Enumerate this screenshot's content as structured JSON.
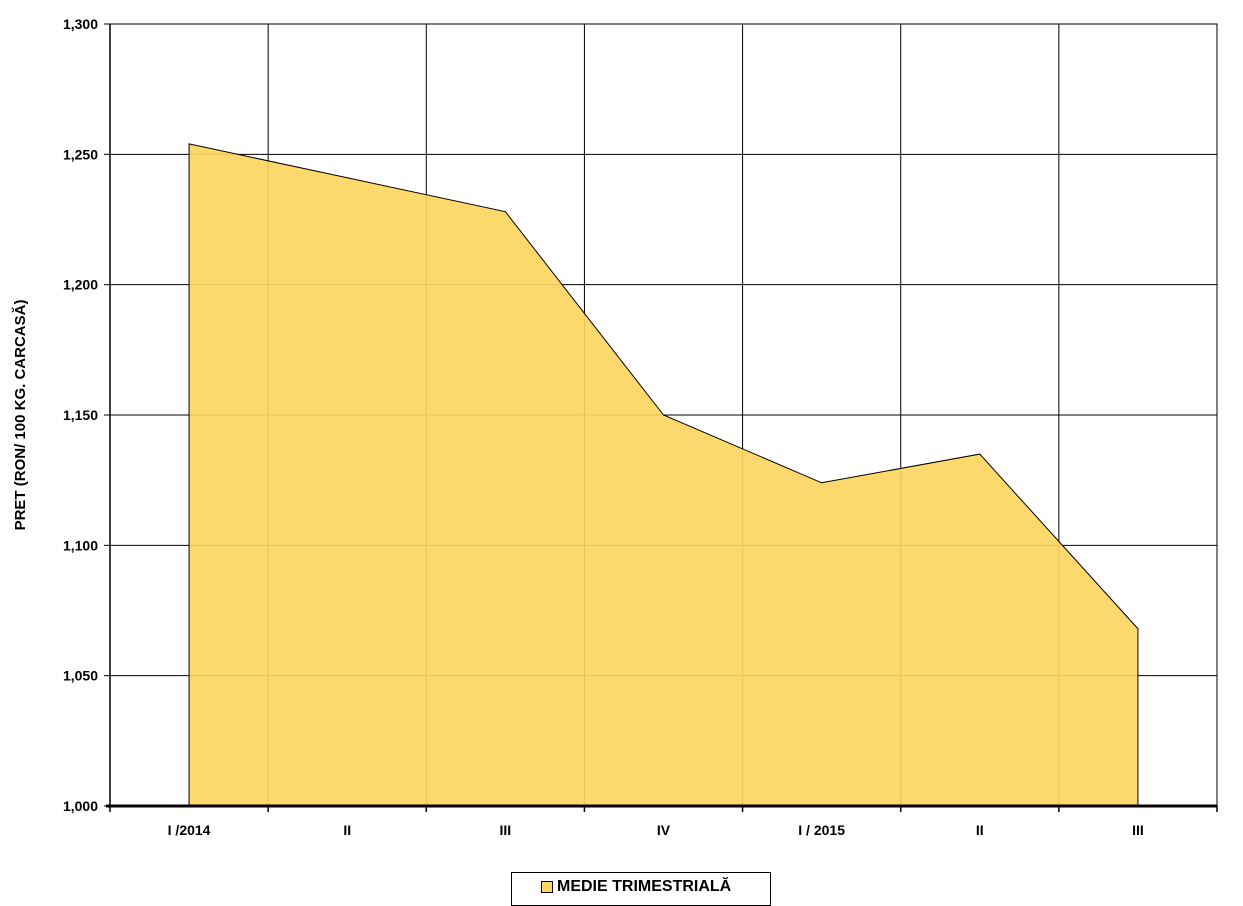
{
  "chart_data": {
    "type": "area",
    "categories": [
      "I /2014",
      "II",
      "III",
      "IV",
      "I / 2015",
      "II",
      "III"
    ],
    "series": [
      {
        "name": "MEDIE TRIMESTRIALĂ",
        "values": [
          1254,
          1241,
          1228,
          1150,
          1124,
          1135,
          1068
        ],
        "color": "#FDD55F"
      }
    ],
    "ylabel": "PRET (RON/ 100 KG. CARCASĂ)",
    "ylim": [
      1000,
      1300
    ],
    "yticks": [
      1000,
      1050,
      1100,
      1150,
      1200,
      1250,
      1300
    ],
    "ytick_labels": [
      "1,000",
      "1,050",
      "1,100",
      "1,150",
      "1,200",
      "1,250",
      "1,300"
    ],
    "grid": true,
    "legend": "bottom"
  }
}
